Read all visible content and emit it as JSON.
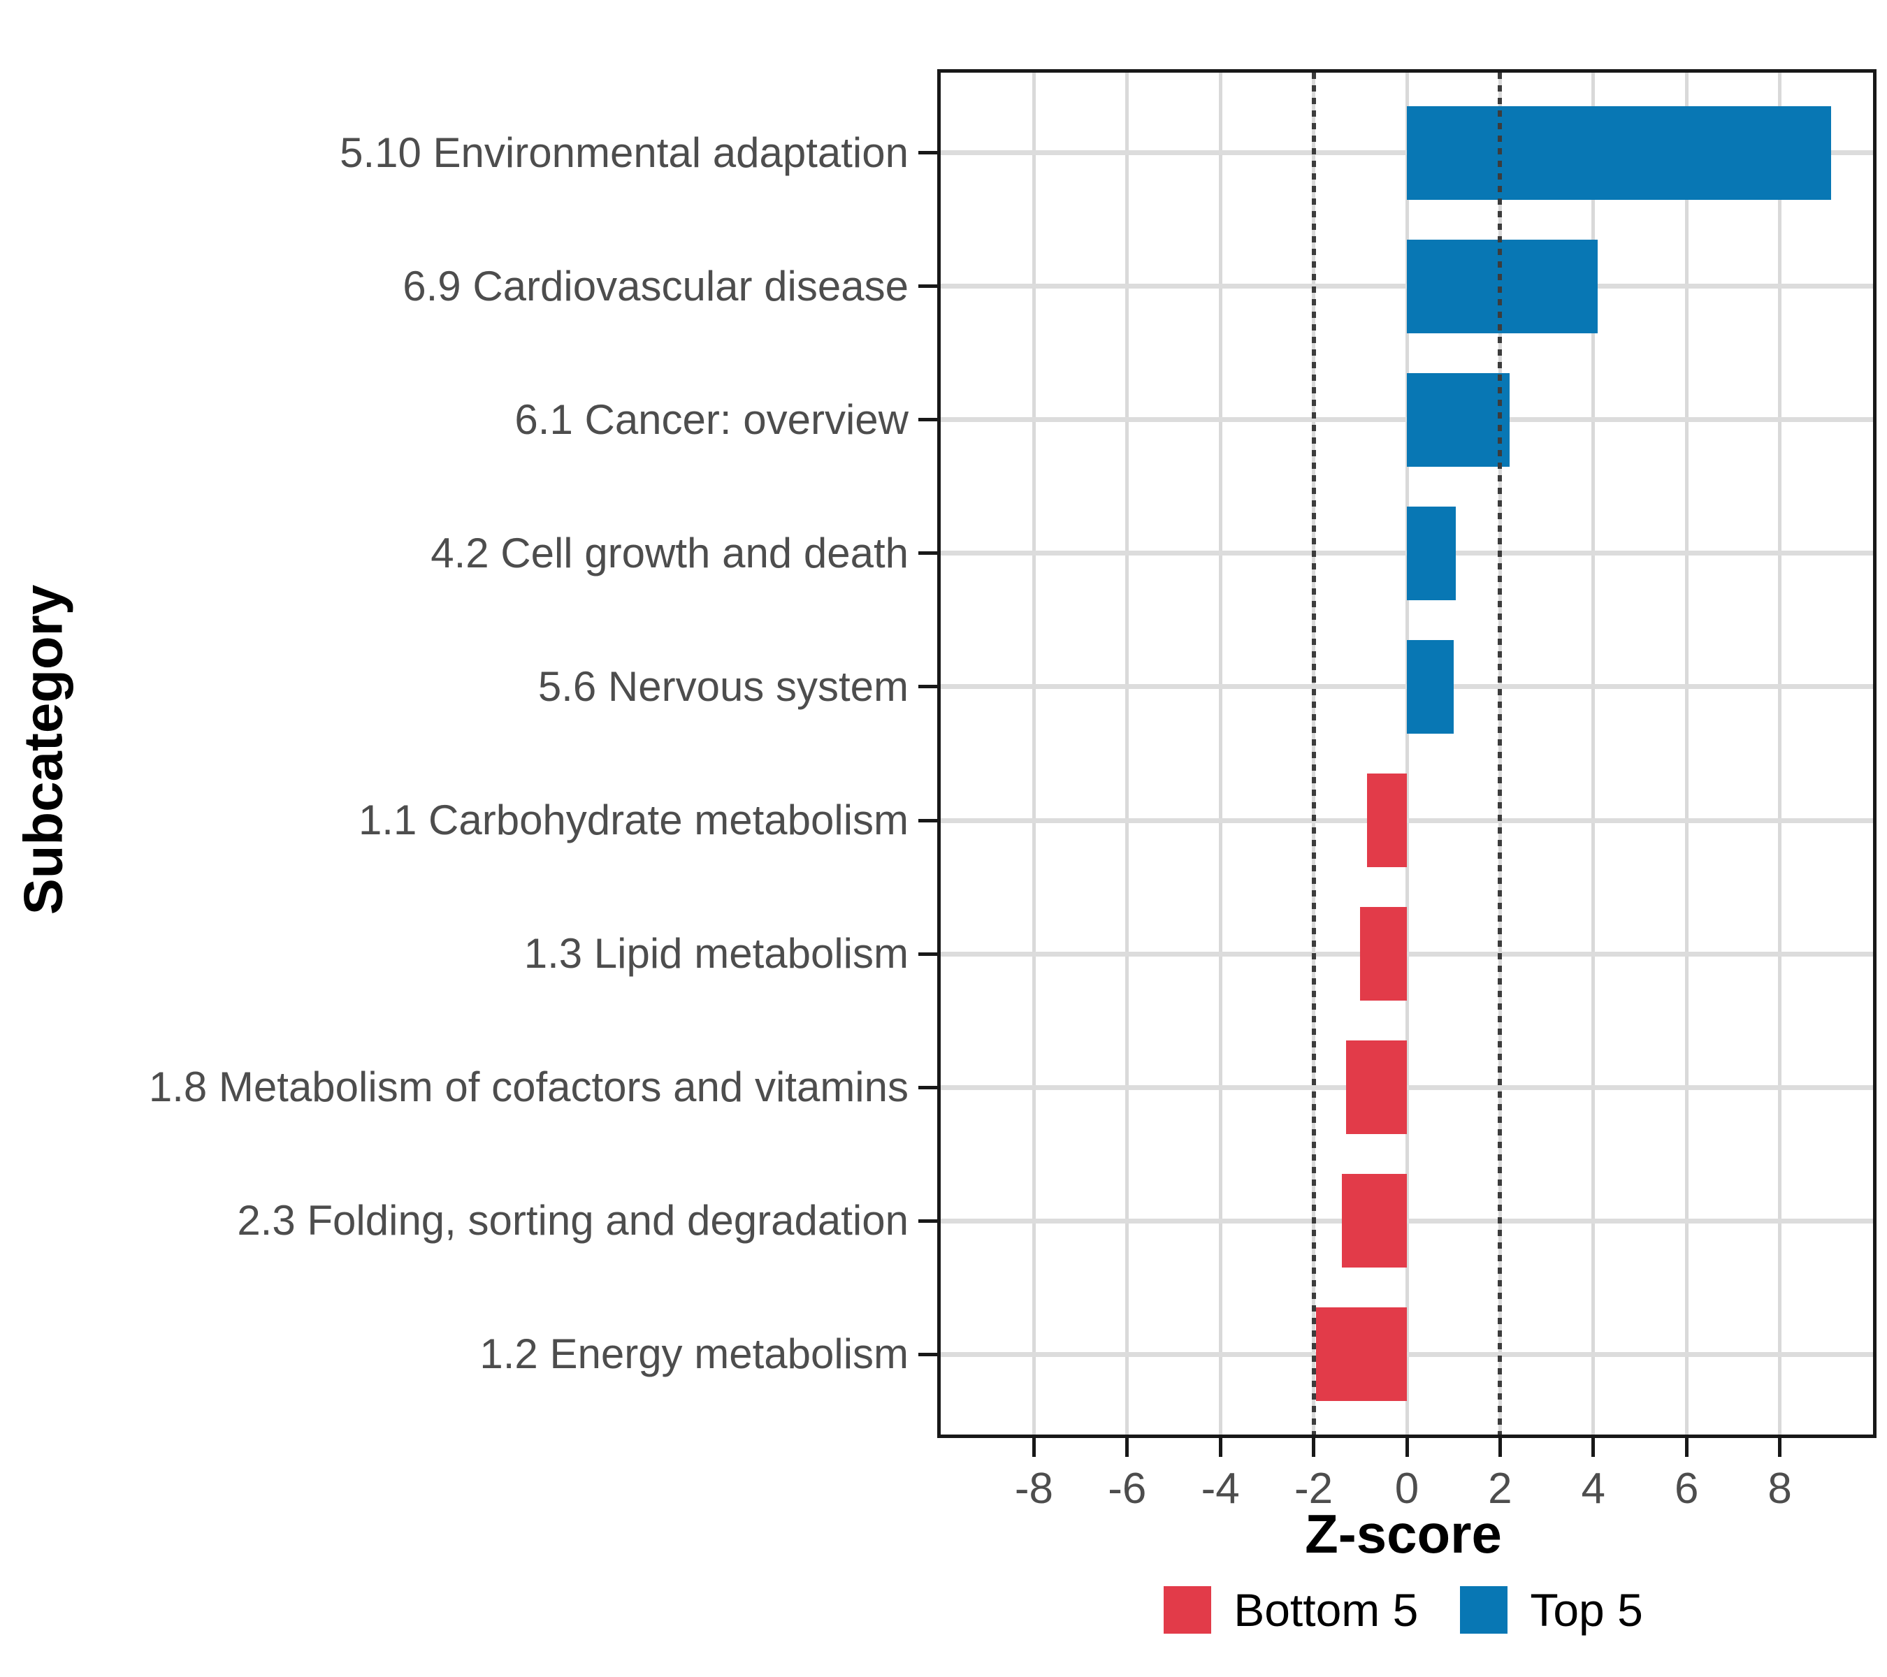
{
  "chart_data": {
    "type": "bar",
    "orientation": "horizontal",
    "title": "",
    "xlabel": "Z-score",
    "ylabel": "Subcategory",
    "xlim": [
      -10,
      10
    ],
    "x_ticks": [
      -8,
      -6,
      -4,
      -2,
      0,
      2,
      4,
      6,
      8
    ],
    "reference_lines": [
      -2,
      2
    ],
    "grid": true,
    "legend_position": "bottom",
    "categories": [
      "5.10 Environmental adaptation",
      "6.9 Cardiovascular disease",
      "6.1 Cancer: overview",
      "4.2 Cell growth and death",
      "5.6 Nervous system",
      "1.1 Carbohydrate metabolism",
      "1.3 Lipid metabolism",
      "1.8 Metabolism of cofactors and vitamins",
      "2.3 Folding, sorting and degradation",
      "1.2 Energy metabolism"
    ],
    "values": [
      9.1,
      4.1,
      2.2,
      1.05,
      1.0,
      -0.85,
      -1.0,
      -1.3,
      -1.4,
      -1.95
    ],
    "groups": [
      "Top 5",
      "Top 5",
      "Top 5",
      "Top 5",
      "Top 5",
      "Bottom 5",
      "Bottom 5",
      "Bottom 5",
      "Bottom 5",
      "Bottom 5"
    ],
    "colors": {
      "Top 5": "#0877b4",
      "Bottom 5": "#e23b49"
    },
    "legend": [
      {
        "label": "Bottom 5",
        "color": "#e23b49"
      },
      {
        "label": "Top 5",
        "color": "#0877b4"
      }
    ],
    "style": {
      "gridline_color": "#d9d9d9",
      "panel_border_color": "#181818",
      "tick_label_color": "#4d4d4d",
      "axis_title_color": "#000000",
      "reference_line_color": "#3c3c3c"
    }
  }
}
